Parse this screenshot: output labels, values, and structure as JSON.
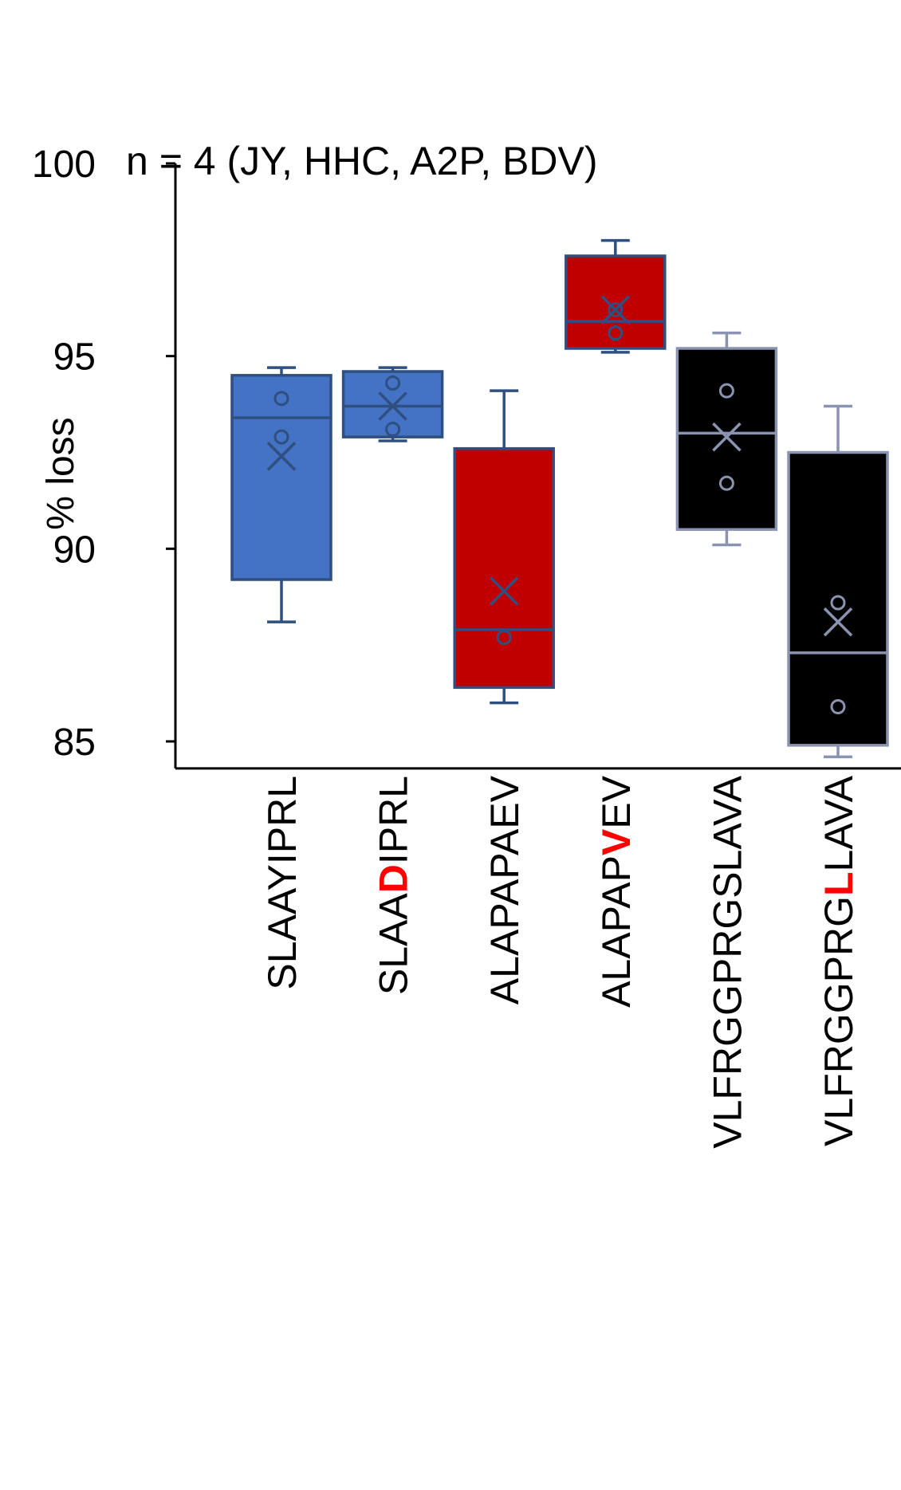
{
  "chart_data": {
    "type": "box",
    "title": "n = 4 (JY, HHC, A2P, BDV)",
    "ylabel": "% loss",
    "xlabel": "",
    "ylim": [
      84.3,
      100
    ],
    "yticks": [
      85,
      90,
      95,
      100
    ],
    "yticks_labels": [
      "85",
      "90",
      "95",
      "100"
    ],
    "grid": false,
    "legend": "none",
    "categories": [
      {
        "label": "SLAAYIPRL",
        "segments": [
          {
            "text": "SLAAYIPRL",
            "highlight": false
          }
        ],
        "fill": "#4472c4",
        "stroke": "#2f4f80",
        "whisker_low": 88.1,
        "q1": 89.2,
        "median": 93.4,
        "q3": 94.5,
        "whisker_high": 94.7,
        "mean": 92.4,
        "points": [
          92.9,
          93.9
        ]
      },
      {
        "label": "SLAADIPRL",
        "segments": [
          {
            "text": "SLAA",
            "highlight": false
          },
          {
            "text": "D",
            "highlight": true
          },
          {
            "text": "IPRL",
            "highlight": false
          }
        ],
        "fill": "#4472c4",
        "stroke": "#2f4f80",
        "whisker_low": 92.8,
        "q1": 92.9,
        "median": 93.7,
        "q3": 94.6,
        "whisker_high": 94.7,
        "mean": 93.7,
        "points": [
          93.1,
          94.3
        ]
      },
      {
        "label": "ALAPAPAEV",
        "segments": [
          {
            "text": "ALAPAPAEV",
            "highlight": false
          }
        ],
        "fill": "#c00000",
        "stroke": "#2f4f80",
        "whisker_low": 86.0,
        "q1": 86.4,
        "median": 87.9,
        "q3": 92.6,
        "whisker_high": 94.1,
        "mean": 88.9,
        "points": [
          87.7
        ]
      },
      {
        "label": "ALAPAPVEV",
        "segments": [
          {
            "text": "ALAPAP",
            "highlight": false
          },
          {
            "text": "V",
            "highlight": true
          },
          {
            "text": "EV",
            "highlight": false
          }
        ],
        "fill": "#c00000",
        "stroke": "#2f4f80",
        "whisker_low": 95.1,
        "q1": 95.2,
        "median": 95.9,
        "q3": 97.6,
        "whisker_high": 98.0,
        "mean": 96.2,
        "points": [
          95.6,
          96.2
        ]
      },
      {
        "label": "VLFRGGPRGSLAVA",
        "segments": [
          {
            "text": "VLFRGGPRGSLAVA",
            "highlight": false
          }
        ],
        "fill": "#000000",
        "stroke": "#8a93b0",
        "whisker_low": 90.1,
        "q1": 90.5,
        "median": 93.0,
        "q3": 95.2,
        "whisker_high": 95.6,
        "mean": 92.9,
        "points": [
          91.7,
          94.1
        ]
      },
      {
        "label": "VLFRGGPRGLLAVA",
        "segments": [
          {
            "text": "VLFRGGPRG",
            "highlight": false
          },
          {
            "text": "L",
            "highlight": true
          },
          {
            "text": "LAVA",
            "highlight": false
          }
        ],
        "fill": "#000000",
        "stroke": "#8a93b0",
        "whisker_low": 84.6,
        "q1": 84.9,
        "median": 87.3,
        "q3": 92.5,
        "whisker_high": 93.7,
        "mean": 88.1,
        "points": [
          85.9,
          88.6
        ]
      }
    ],
    "colors": {
      "highlight": "#ff0000",
      "axis": "#000000",
      "text": "#000000"
    }
  }
}
